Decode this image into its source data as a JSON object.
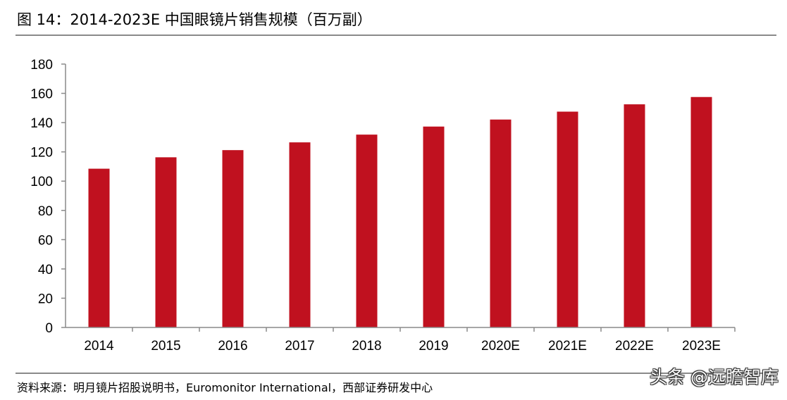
{
  "title": "图 14：2014-2023E 中国眼镜片销售规模（百万副）",
  "source": "资料来源：明月镜片招股说明书，Euromonitor International，西部证券研发中心",
  "watermark": "头条 @远瞻智库",
  "colors": {
    "bar": "#c0111f",
    "axis": "#8a8a8a",
    "rule": "#8a8a8a"
  },
  "chart_data": {
    "type": "bar",
    "categories": [
      "2014",
      "2015",
      "2016",
      "2017",
      "2018",
      "2019",
      "2020E",
      "2021E",
      "2022E",
      "2023E"
    ],
    "values": [
      108.5,
      116.3,
      121.2,
      126.5,
      131.8,
      137.3,
      142.1,
      147.5,
      152.5,
      157.5
    ],
    "title": "图 14：2014-2023E 中国眼镜片销售规模（百万副）",
    "xlabel": "",
    "ylabel": "",
    "ylim": [
      0,
      180
    ],
    "yticks": [
      0,
      20,
      40,
      60,
      80,
      100,
      120,
      140,
      160,
      180
    ],
    "grid": false,
    "legend": "none"
  }
}
